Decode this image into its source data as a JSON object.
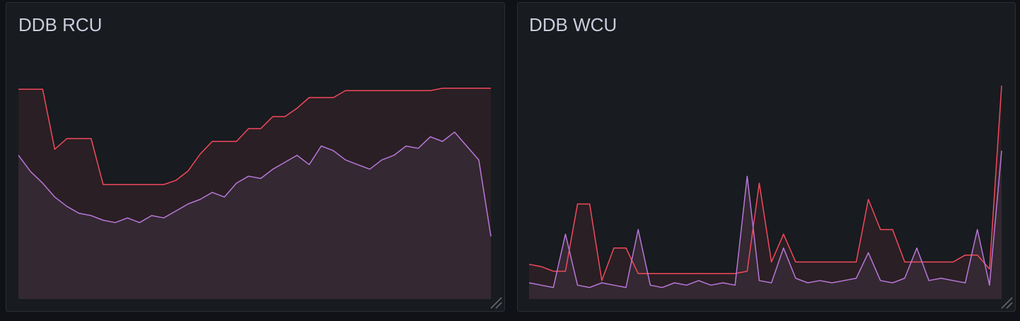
{
  "chart_data": [
    {
      "type": "line",
      "title": "DDB RCU",
      "x": [
        0,
        1,
        2,
        3,
        4,
        5,
        6,
        7,
        8,
        9,
        10,
        11,
        12,
        13,
        14,
        15,
        16,
        17,
        18,
        19,
        20,
        21,
        22,
        23,
        24,
        25,
        26,
        27,
        28,
        29,
        30,
        31,
        32,
        33,
        34,
        35,
        36,
        37,
        38,
        39
      ],
      "xlim": [
        0,
        39
      ],
      "ylim": [
        0,
        100
      ],
      "series": [
        {
          "color": "#f2495c",
          "fill": "#2a1f24",
          "values": [
            90.5,
            90.5,
            90.5,
            64.6,
            69.2,
            69.2,
            69.2,
            49.4,
            49.4,
            49.4,
            49.4,
            49.4,
            49.4,
            51.2,
            55.2,
            62.5,
            68.0,
            68.0,
            68.0,
            73.5,
            73.5,
            78.7,
            78.7,
            82.3,
            86.9,
            86.9,
            86.9,
            89.9,
            89.9,
            89.9,
            89.9,
            89.9,
            89.9,
            89.9,
            89.9,
            90.9,
            90.9,
            90.9,
            90.9,
            90.9
          ]
        },
        {
          "color": "#b877d9",
          "fill": "#342832",
          "values": [
            62,
            55,
            50,
            44,
            40,
            37,
            36,
            34,
            33,
            35,
            33,
            36,
            35,
            38,
            41,
            43,
            46,
            44,
            50,
            53,
            52,
            56,
            59,
            62,
            58,
            66,
            64,
            60,
            58,
            56,
            60,
            62,
            66,
            65,
            70,
            68,
            72,
            66,
            60,
            27
          ]
        }
      ]
    },
    {
      "type": "line",
      "title": "DDB WCU",
      "x": [
        0,
        1,
        2,
        3,
        4,
        5,
        6,
        7,
        8,
        9,
        10,
        11,
        12,
        13,
        14,
        15,
        16,
        17,
        18,
        19,
        20,
        21,
        22,
        23,
        24,
        25,
        26,
        27,
        28,
        29,
        30,
        31,
        32,
        33,
        34,
        35,
        36,
        37,
        38,
        39
      ],
      "xlim": [
        0,
        39
      ],
      "ylim": [
        0,
        100
      ],
      "series": [
        {
          "color": "#f2495c",
          "fill": "#2a1f24",
          "values": [
            15,
            14,
            12,
            12,
            41,
            41,
            8,
            22,
            22,
            11,
            11,
            11,
            11,
            11,
            11,
            11,
            11,
            11,
            12,
            50,
            16,
            28,
            16,
            16,
            16,
            16,
            16,
            16,
            43,
            30,
            30,
            16,
            16,
            16,
            16,
            16,
            19,
            19,
            13,
            92
          ]
        },
        {
          "color": "#b877d9",
          "fill": "#342832",
          "values": [
            7,
            6,
            5,
            28,
            6,
            5,
            7,
            6,
            5,
            30,
            6,
            5,
            7,
            6,
            8,
            6,
            7,
            6,
            53,
            8,
            7,
            22,
            9,
            7,
            8,
            7,
            8,
            9,
            20,
            8,
            7,
            9,
            22,
            8,
            9,
            8,
            7,
            30,
            6,
            64
          ]
        }
      ]
    }
  ]
}
